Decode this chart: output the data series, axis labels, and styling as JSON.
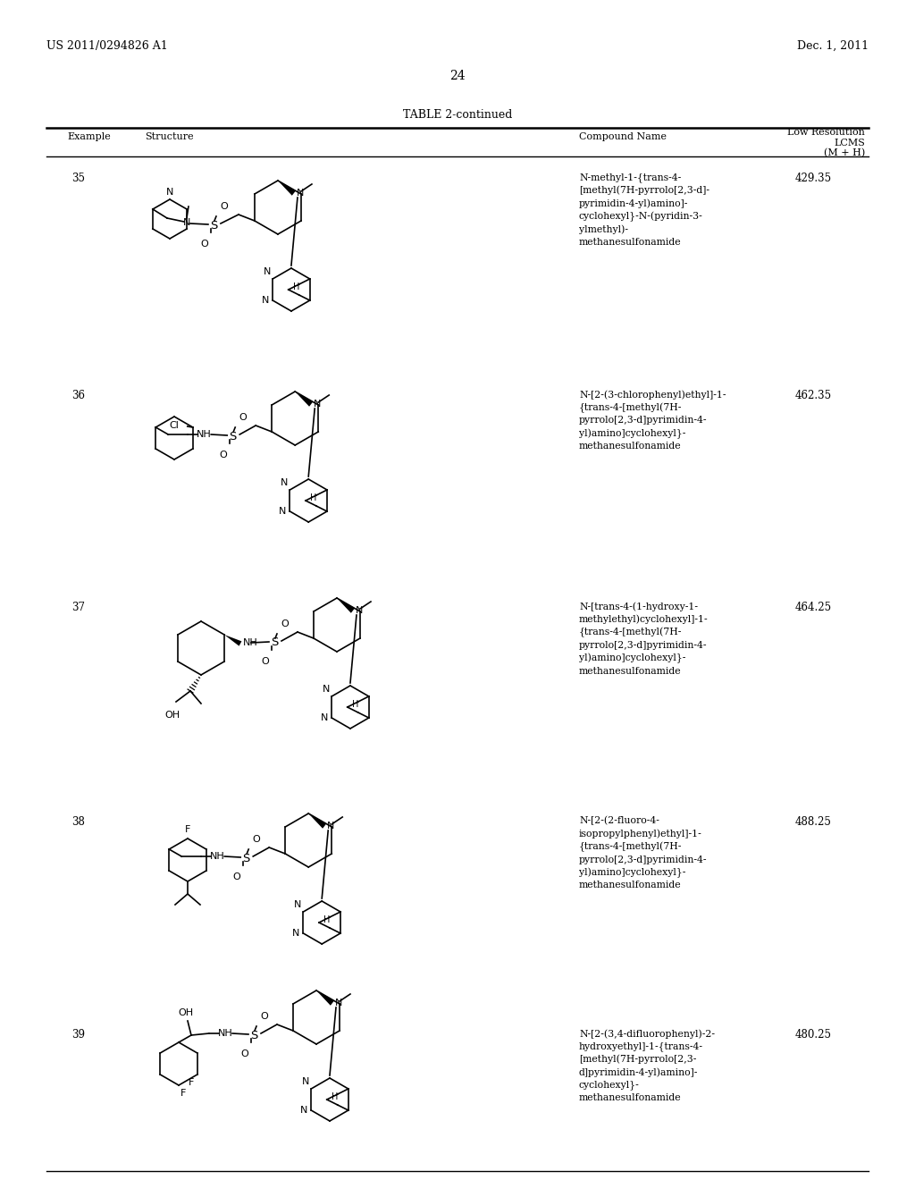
{
  "page_header_left": "US 2011/0294826 A1",
  "page_header_right": "Dec. 1, 2011",
  "page_number": "24",
  "table_title": "TABLE 2-continued",
  "rows": [
    {
      "example": "35",
      "compound_name": "N-methyl-1-{trans-4-\n[methyl(7H-pyrrolo[2,3-d]-\npyrimidin-4-yl)amino]-\ncyclohexyl}-N-(pyridin-3-\nylmethyl)-\nmethanesulfonamide",
      "lcms": "429.35"
    },
    {
      "example": "36",
      "compound_name": "N-[2-(3-chlorophenyl)ethyl]-1-\n{trans-4-[methyl(7H-\npyrrolo[2,3-d]pyrimidin-4-\nyl)amino]cyclohexyl}-\nmethanesulfonamide",
      "lcms": "462.35"
    },
    {
      "example": "37",
      "compound_name": "N-[trans-4-(1-hydroxy-1-\nmethylethyl)cyclohexyl]-1-\n{trans-4-[methyl(7H-\npyrrolo[2,3-d]pyrimidin-4-\nyl)amino]cyclohexyl}-\nmethanesulfonamide",
      "lcms": "464.25"
    },
    {
      "example": "38",
      "compound_name": "N-[2-(2-fluoro-4-\nisopropylphenyl)ethyl]-1-\n{trans-4-[methyl(7H-\npyrrolo[2,3-d]pyrimidin-4-\nyl)amino]cyclohexyl}-\nmethanesulfonamide",
      "lcms": "488.25"
    },
    {
      "example": "39",
      "compound_name": "N-[2-(3,4-difluorophenyl)-2-\nhydroxyethyl]-1-{trans-4-\n[methyl(7H-pyrrolo[2,3-\nd]pyrimidin-4-yl)amino]-\ncyclohexyl}-\nmethanesulfonamide",
      "lcms": "480.25"
    }
  ]
}
